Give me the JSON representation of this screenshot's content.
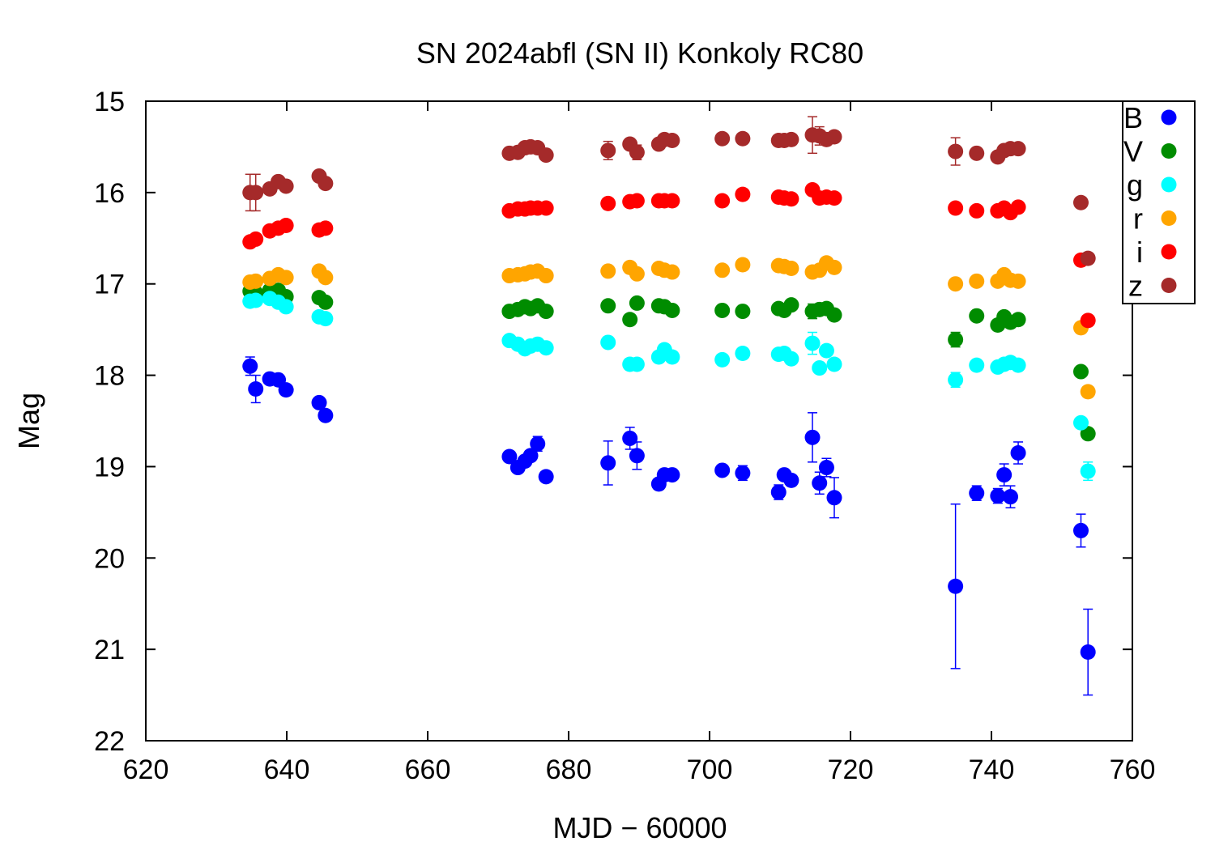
{
  "chart_data": {
    "type": "scatter",
    "title": "SN 2024abfl (SN II) Konkoly RC80",
    "xlabel": "MJD − 60000",
    "ylabel": "Mag",
    "xlim": [
      620,
      760
    ],
    "ylim": [
      22,
      15
    ],
    "y_inverted": true,
    "grid": false,
    "legend_position": "top-right",
    "xticks": [
      "620",
      "640",
      "660",
      "680",
      "700",
      "720",
      "740",
      "760"
    ],
    "yticks": [
      "15",
      "16",
      "17",
      "18",
      "19",
      "20",
      "21",
      "22"
    ],
    "series": [
      {
        "name": "B",
        "color": "#0000ff",
        "points": [
          [
            634.8,
            17.9,
            0.1
          ],
          [
            635.6,
            18.15,
            0.15
          ],
          [
            637.6,
            18.04,
            0.05
          ],
          [
            638.8,
            18.05,
            0.05
          ],
          [
            639.9,
            18.16,
            0.05
          ],
          [
            644.6,
            18.3,
            0.05
          ],
          [
            645.5,
            18.44,
            0.05
          ],
          [
            671.6,
            18.89,
            0.05
          ],
          [
            672.8,
            19.01,
            0.05
          ],
          [
            673.8,
            18.94,
            0.05
          ],
          [
            674.6,
            18.88,
            0.05
          ],
          [
            675.6,
            18.75,
            0.08
          ],
          [
            676.8,
            19.11,
            0.05
          ],
          [
            685.6,
            18.96,
            0.24
          ],
          [
            688.7,
            18.69,
            0.12
          ],
          [
            689.7,
            18.88,
            0.15
          ],
          [
            692.8,
            19.19,
            0.05
          ],
          [
            693.6,
            19.09,
            0.05
          ],
          [
            694.7,
            19.09,
            0.05
          ],
          [
            701.8,
            19.04,
            0.05
          ],
          [
            704.7,
            19.07,
            0.08
          ],
          [
            709.8,
            19.28,
            0.08
          ],
          [
            710.6,
            19.09,
            0.05
          ],
          [
            711.6,
            19.15,
            0.05
          ],
          [
            714.6,
            18.68,
            0.27
          ],
          [
            715.6,
            19.18,
            0.12
          ],
          [
            716.6,
            19.01,
            0.1
          ],
          [
            717.7,
            19.34,
            0.22
          ],
          [
            734.9,
            20.31,
            0.9
          ],
          [
            737.9,
            19.29,
            0.08
          ],
          [
            740.9,
            19.32,
            0.08
          ],
          [
            741.8,
            19.09,
            0.12
          ],
          [
            742.7,
            19.33,
            0.12
          ],
          [
            743.8,
            18.85,
            0.12
          ],
          [
            752.7,
            19.7,
            0.18
          ],
          [
            753.7,
            21.03,
            0.47
          ]
        ]
      },
      {
        "name": "V",
        "color": "#008c00",
        "points": [
          [
            634.8,
            17.08,
            0.03
          ],
          [
            635.6,
            17.1,
            0.03
          ],
          [
            637.6,
            17.07,
            0.03
          ],
          [
            638.8,
            17.07,
            0.03
          ],
          [
            639.9,
            17.14,
            0.03
          ],
          [
            644.6,
            17.15,
            0.03
          ],
          [
            645.5,
            17.2,
            0.03
          ],
          [
            671.6,
            17.3,
            0.03
          ],
          [
            672.8,
            17.28,
            0.03
          ],
          [
            673.8,
            17.25,
            0.03
          ],
          [
            674.6,
            17.27,
            0.03
          ],
          [
            675.6,
            17.24,
            0.03
          ],
          [
            676.8,
            17.3,
            0.03
          ],
          [
            685.6,
            17.24,
            0.03
          ],
          [
            688.7,
            17.39,
            0.03
          ],
          [
            689.7,
            17.21,
            0.03
          ],
          [
            692.8,
            17.24,
            0.03
          ],
          [
            693.6,
            17.25,
            0.03
          ],
          [
            694.7,
            17.29,
            0.03
          ],
          [
            701.8,
            17.29,
            0.03
          ],
          [
            704.7,
            17.3,
            0.03
          ],
          [
            709.8,
            17.27,
            0.03
          ],
          [
            710.6,
            17.29,
            0.03
          ],
          [
            711.6,
            17.23,
            0.03
          ],
          [
            714.6,
            17.3,
            0.08
          ],
          [
            715.6,
            17.28,
            0.03
          ],
          [
            716.6,
            17.27,
            0.03
          ],
          [
            717.7,
            17.34,
            0.03
          ],
          [
            734.9,
            17.61,
            0.08
          ],
          [
            737.9,
            17.35,
            0.03
          ],
          [
            740.9,
            17.45,
            0.03
          ],
          [
            741.8,
            17.36,
            0.03
          ],
          [
            742.7,
            17.42,
            0.03
          ],
          [
            743.8,
            17.39,
            0.03
          ],
          [
            752.7,
            17.96,
            0.03
          ],
          [
            753.7,
            18.64,
            0.05
          ]
        ]
      },
      {
        "name": "g",
        "color": "#00ffff",
        "points": [
          [
            634.8,
            17.19,
            0.03
          ],
          [
            635.6,
            17.18,
            0.03
          ],
          [
            637.6,
            17.16,
            0.03
          ],
          [
            638.8,
            17.2,
            0.03
          ],
          [
            639.9,
            17.25,
            0.03
          ],
          [
            644.6,
            17.36,
            0.03
          ],
          [
            645.5,
            17.38,
            0.03
          ],
          [
            671.6,
            17.62,
            0.03
          ],
          [
            672.8,
            17.66,
            0.03
          ],
          [
            673.8,
            17.71,
            0.03
          ],
          [
            674.6,
            17.68,
            0.03
          ],
          [
            675.6,
            17.66,
            0.03
          ],
          [
            676.8,
            17.7,
            0.03
          ],
          [
            685.6,
            17.64,
            0.06
          ],
          [
            688.7,
            17.88,
            0.06
          ],
          [
            689.7,
            17.88,
            0.06
          ],
          [
            692.8,
            17.8,
            0.03
          ],
          [
            693.6,
            17.72,
            0.03
          ],
          [
            694.7,
            17.8,
            0.03
          ],
          [
            701.8,
            17.83,
            0.03
          ],
          [
            704.7,
            17.76,
            0.03
          ],
          [
            709.8,
            17.77,
            0.03
          ],
          [
            710.6,
            17.76,
            0.03
          ],
          [
            711.6,
            17.82,
            0.03
          ],
          [
            714.6,
            17.65,
            0.12
          ],
          [
            715.6,
            17.92,
            0.03
          ],
          [
            716.6,
            17.73,
            0.03
          ],
          [
            717.7,
            17.88,
            0.03
          ],
          [
            734.9,
            18.05,
            0.08
          ],
          [
            737.9,
            17.89,
            0.03
          ],
          [
            740.9,
            17.91,
            0.03
          ],
          [
            741.8,
            17.88,
            0.03
          ],
          [
            742.7,
            17.86,
            0.03
          ],
          [
            743.8,
            17.89,
            0.03
          ],
          [
            752.7,
            18.52,
            0.03
          ],
          [
            753.7,
            19.05,
            0.1
          ]
        ]
      },
      {
        "name": "r",
        "color": "#ffa500",
        "points": [
          [
            634.8,
            16.98,
            0.03
          ],
          [
            635.6,
            16.97,
            0.03
          ],
          [
            637.6,
            16.94,
            0.03
          ],
          [
            638.8,
            16.9,
            0.03
          ],
          [
            639.9,
            16.93,
            0.03
          ],
          [
            644.6,
            16.86,
            0.03
          ],
          [
            645.5,
            16.93,
            0.03
          ],
          [
            671.6,
            16.91,
            0.03
          ],
          [
            672.8,
            16.9,
            0.03
          ],
          [
            673.8,
            16.89,
            0.03
          ],
          [
            674.6,
            16.87,
            0.03
          ],
          [
            675.6,
            16.86,
            0.03
          ],
          [
            676.8,
            16.91,
            0.03
          ],
          [
            685.6,
            16.86,
            0.03
          ],
          [
            688.7,
            16.82,
            0.03
          ],
          [
            689.7,
            16.89,
            0.03
          ],
          [
            692.8,
            16.83,
            0.03
          ],
          [
            693.6,
            16.85,
            0.03
          ],
          [
            694.7,
            16.87,
            0.03
          ],
          [
            701.8,
            16.85,
            0.03
          ],
          [
            704.7,
            16.79,
            0.03
          ],
          [
            709.8,
            16.8,
            0.03
          ],
          [
            710.6,
            16.81,
            0.03
          ],
          [
            711.6,
            16.83,
            0.03
          ],
          [
            714.6,
            16.87,
            0.03
          ],
          [
            715.6,
            16.85,
            0.03
          ],
          [
            716.6,
            16.77,
            0.03
          ],
          [
            717.7,
            16.82,
            0.03
          ],
          [
            734.9,
            17.0,
            0.03
          ],
          [
            737.9,
            16.97,
            0.03
          ],
          [
            740.9,
            16.97,
            0.03
          ],
          [
            741.8,
            16.9,
            0.03
          ],
          [
            742.7,
            16.96,
            0.03
          ],
          [
            743.8,
            16.97,
            0.03
          ],
          [
            752.7,
            17.48,
            0.03
          ],
          [
            753.7,
            18.18,
            0.03
          ]
        ]
      },
      {
        "name": "i",
        "color": "#ff0000",
        "points": [
          [
            634.8,
            16.54,
            0.03
          ],
          [
            635.6,
            16.51,
            0.03
          ],
          [
            637.6,
            16.42,
            0.03
          ],
          [
            638.8,
            16.39,
            0.03
          ],
          [
            639.9,
            16.36,
            0.03
          ],
          [
            644.6,
            16.41,
            0.03
          ],
          [
            645.5,
            16.39,
            0.03
          ],
          [
            671.6,
            16.2,
            0.03
          ],
          [
            672.8,
            16.18,
            0.03
          ],
          [
            673.8,
            16.18,
            0.03
          ],
          [
            674.6,
            16.17,
            0.03
          ],
          [
            675.6,
            16.17,
            0.03
          ],
          [
            676.8,
            16.17,
            0.03
          ],
          [
            685.6,
            16.12,
            0.03
          ],
          [
            688.7,
            16.1,
            0.03
          ],
          [
            689.7,
            16.09,
            0.03
          ],
          [
            692.8,
            16.09,
            0.03
          ],
          [
            693.6,
            16.09,
            0.03
          ],
          [
            694.7,
            16.09,
            0.03
          ],
          [
            701.8,
            16.09,
            0.03
          ],
          [
            704.7,
            16.02,
            0.03
          ],
          [
            709.8,
            16.05,
            0.03
          ],
          [
            710.6,
            16.06,
            0.03
          ],
          [
            711.6,
            16.07,
            0.03
          ],
          [
            714.6,
            15.97,
            0.03
          ],
          [
            715.6,
            16.06,
            0.03
          ],
          [
            716.6,
            16.05,
            0.03
          ],
          [
            717.7,
            16.06,
            0.03
          ],
          [
            734.9,
            16.17,
            0.03
          ],
          [
            737.9,
            16.2,
            0.03
          ],
          [
            740.9,
            16.2,
            0.03
          ],
          [
            741.8,
            16.17,
            0.03
          ],
          [
            742.7,
            16.22,
            0.03
          ],
          [
            743.8,
            16.16,
            0.03
          ],
          [
            752.7,
            16.74,
            0.03
          ],
          [
            753.7,
            17.4,
            0.03
          ]
        ]
      },
      {
        "name": "z",
        "color": "#a52a2a",
        "points": [
          [
            634.8,
            16.0,
            0.2
          ],
          [
            635.6,
            16.0,
            0.2
          ],
          [
            637.6,
            15.96,
            0.03
          ],
          [
            638.8,
            15.88,
            0.03
          ],
          [
            639.9,
            15.93,
            0.03
          ],
          [
            644.6,
            15.82,
            0.03
          ],
          [
            645.5,
            15.9,
            0.03
          ],
          [
            671.6,
            15.57,
            0.03
          ],
          [
            672.8,
            15.56,
            0.03
          ],
          [
            673.8,
            15.51,
            0.03
          ],
          [
            674.6,
            15.5,
            0.03
          ],
          [
            675.6,
            15.51,
            0.03
          ],
          [
            676.8,
            15.59,
            0.03
          ],
          [
            685.6,
            15.54,
            0.1
          ],
          [
            688.7,
            15.47,
            0.03
          ],
          [
            689.7,
            15.56,
            0.08
          ],
          [
            692.8,
            15.47,
            0.03
          ],
          [
            693.6,
            15.42,
            0.03
          ],
          [
            694.7,
            15.43,
            0.03
          ],
          [
            701.8,
            15.41,
            0.03
          ],
          [
            704.7,
            15.41,
            0.03
          ],
          [
            709.8,
            15.43,
            0.03
          ],
          [
            710.6,
            15.43,
            0.03
          ],
          [
            711.6,
            15.42,
            0.03
          ],
          [
            714.6,
            15.37,
            0.2
          ],
          [
            715.6,
            15.38,
            0.1
          ],
          [
            716.6,
            15.42,
            0.03
          ],
          [
            717.7,
            15.39,
            0.03
          ],
          [
            734.9,
            15.55,
            0.15
          ],
          [
            737.9,
            15.57,
            0.03
          ],
          [
            740.9,
            15.61,
            0.03
          ],
          [
            741.8,
            15.54,
            0.03
          ],
          [
            742.7,
            15.52,
            0.03
          ],
          [
            743.8,
            15.52,
            0.03
          ],
          [
            752.7,
            16.11,
            0.03
          ],
          [
            753.7,
            16.72,
            0.03
          ]
        ]
      }
    ]
  }
}
